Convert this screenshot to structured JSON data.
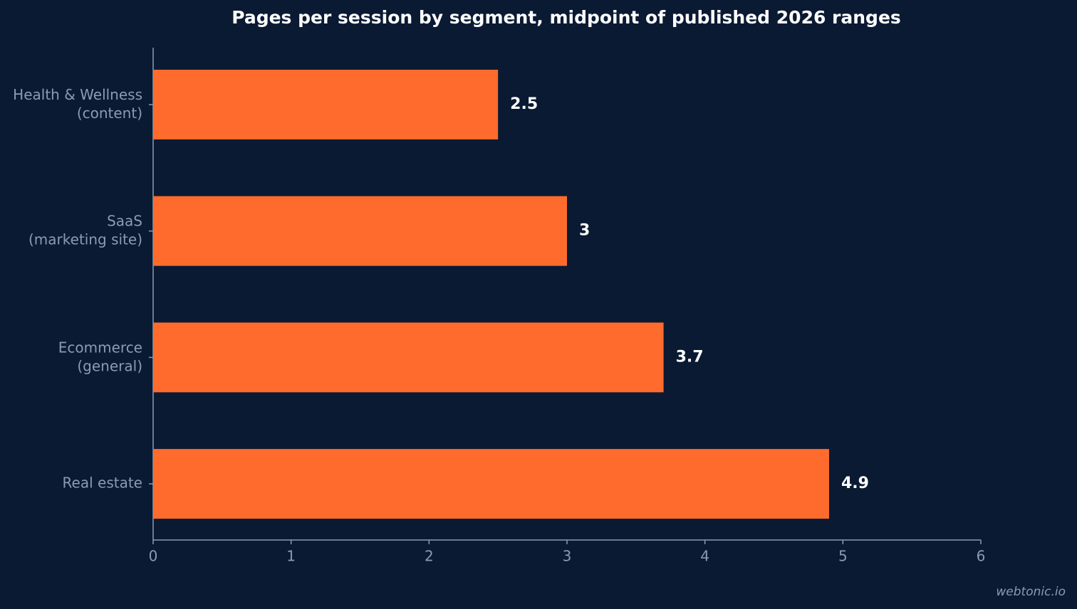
{
  "chart_data": {
    "type": "bar",
    "orientation": "horizontal",
    "title": "Pages per session by segment, midpoint of published 2026 ranges",
    "categories": [
      "Health & Wellness\n(content)",
      "SaaS\n(marketing site)",
      "Ecommerce\n(general)",
      "Real estate"
    ],
    "values": [
      2.5,
      3,
      3.7,
      4.9
    ],
    "color": "#ff6b2c",
    "xlim": [
      0,
      6
    ],
    "xticks": [
      0,
      1,
      2,
      3,
      4,
      5,
      6
    ],
    "grid": false,
    "watermark": "webtonic.io"
  }
}
